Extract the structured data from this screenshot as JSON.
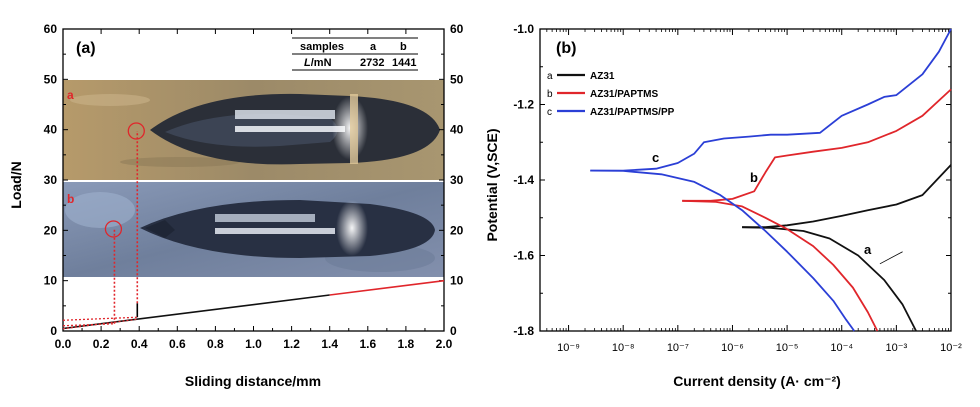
{
  "colors": {
    "a": "#111111",
    "b": "#e0262b",
    "c": "#2b3fd6",
    "dash": "#e0262b"
  },
  "chart_data": [
    {
      "type": "line",
      "panel_label": "(a)",
      "xlabel": "Sliding distance/mm",
      "ylabel": "Load/N",
      "xlim": [
        0,
        2.0
      ],
      "ylim": [
        0,
        60
      ],
      "xticks": [
        "0.0",
        "0.2",
        "0.4",
        "0.6",
        "0.8",
        "1.0",
        "1.2",
        "1.4",
        "1.6",
        "1.8",
        "2.0"
      ],
      "yticks": [
        "0",
        "10",
        "20",
        "30",
        "40",
        "50",
        "60"
      ],
      "series": [
        {
          "values_x": [
            0.0,
            2.0
          ],
          "values_y": [
            0.5,
            10.0
          ]
        }
      ],
      "critical_points": [
        {
          "label": "a",
          "x": 0.39,
          "y": 2.73
        },
        {
          "label": "b",
          "x": 0.27,
          "y": 1.44
        }
      ],
      "image_labels": [
        "a",
        "b"
      ],
      "table": {
        "headers": [
          "samples",
          "a",
          "b"
        ],
        "row_label": "L/mN",
        "values": [
          "2732",
          "1441"
        ]
      }
    },
    {
      "type": "line",
      "panel_label": "(b)",
      "xlabel": "Current density (A· cm⁻²)",
      "ylabel": "Potential (V,SCE)",
      "xscale": "log",
      "xlim": [
        3e-10,
        0.01
      ],
      "ylim": [
        -1.8,
        -1.0
      ],
      "xticks": [
        "10⁻⁹",
        "10⁻⁸",
        "10⁻⁷",
        "10⁻⁶",
        "10⁻⁵",
        "10⁻⁴",
        "10⁻³",
        "10⁻²"
      ],
      "yticks": [
        "-1.0",
        "-1.2",
        "-1.4",
        "-1.6",
        "-1.8"
      ],
      "legend_position": "top-left",
      "series": [
        {
          "key": "a",
          "name": "AZ31",
          "legend_key": "a",
          "curve_label": "a",
          "x": [
            1.5e-06,
            4e-06,
            1e-05,
            3e-05,
            0.0001,
            0.0003,
            0.001,
            0.003,
            0.01
          ],
          "y": [
            -1.525,
            -1.525,
            -1.52,
            -1.51,
            -1.495,
            -1.48,
            -1.465,
            -1.44,
            -1.36
          ],
          "x2": [
            1.5e-06,
            5e-06,
            2e-05,
            6e-05,
            0.0002,
            0.0006,
            0.0013,
            0.0023
          ],
          "y2": [
            -1.525,
            -1.527,
            -1.535,
            -1.555,
            -1.6,
            -1.665,
            -1.73,
            -1.8
          ]
        },
        {
          "key": "b",
          "name": "AZ31/PAPTMS",
          "legend_key": "b",
          "curve_label": "b",
          "x": [
            1.2e-07,
            4e-07,
            1e-06,
            2.5e-06,
            4e-06,
            6e-06,
            1e-05,
            3e-05,
            0.0001,
            0.0003,
            0.001,
            0.003,
            0.01
          ],
          "y": [
            -1.455,
            -1.455,
            -1.45,
            -1.43,
            -1.38,
            -1.34,
            -1.335,
            -1.325,
            -1.315,
            -1.3,
            -1.27,
            -1.23,
            -1.16
          ],
          "x2": [
            1.2e-07,
            5e-07,
            1.5e-06,
            4e-06,
            1e-05,
            3e-05,
            7e-05,
            0.00016,
            0.0003,
            0.00045
          ],
          "y2": [
            -1.455,
            -1.458,
            -1.47,
            -1.5,
            -1.53,
            -1.575,
            -1.625,
            -1.685,
            -1.75,
            -1.8
          ]
        },
        {
          "key": "c",
          "name": "AZ31/PAPTMS/PP",
          "legend_key": "c",
          "curve_label": "c",
          "x": [
            2.5e-09,
            1e-08,
            4e-08,
            1e-07,
            2e-07,
            3e-07,
            7e-07,
            2e-06,
            5e-06,
            1e-05,
            4e-05,
            0.0001,
            0.0003,
            0.0006,
            0.001,
            0.003,
            0.006,
            0.01
          ],
          "y": [
            -1.375,
            -1.375,
            -1.37,
            -1.355,
            -1.33,
            -1.3,
            -1.29,
            -1.285,
            -1.28,
            -1.28,
            -1.275,
            -1.23,
            -1.2,
            -1.18,
            -1.175,
            -1.12,
            -1.06,
            -1.0
          ],
          "x2": [
            2.5e-09,
            1e-08,
            5e-08,
            2e-07,
            6e-07,
            1.5e-06,
            4e-06,
            1e-05,
            3e-05,
            7e-05,
            0.00012,
            0.00017
          ],
          "y2": [
            -1.375,
            -1.376,
            -1.385,
            -1.405,
            -1.44,
            -1.48,
            -1.535,
            -1.59,
            -1.66,
            -1.72,
            -1.77,
            -1.8
          ]
        }
      ]
    }
  ]
}
